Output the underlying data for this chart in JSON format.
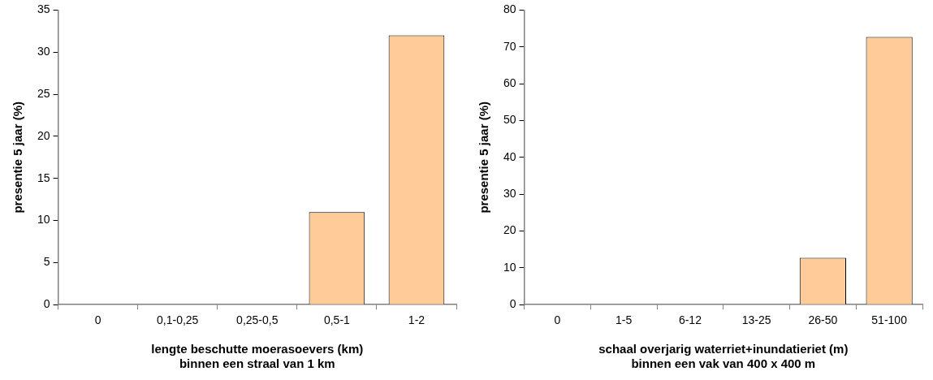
{
  "chart_data": [
    {
      "type": "bar",
      "xlabel": "lengte beschutte moerasoevers (km)\nbinnen een straal van 1 km",
      "ylabel": "presentie 5 jaar (%)",
      "categories": [
        "0",
        "0,1-0,25",
        "0,25-0,5",
        "0,5-1",
        "1-2"
      ],
      "values": [
        0,
        0,
        0,
        11,
        32
      ],
      "color": "#ffcc99",
      "ylim": [
        0,
        35
      ],
      "yticks": [
        0,
        5,
        10,
        15,
        20,
        25,
        30,
        35
      ],
      "grid": false
    },
    {
      "type": "bar",
      "xlabel": "schaal overjarig waterriet+inundatieriet (m)\nbinnen een vak van 400 x 400 m",
      "ylabel": "presentie 5 jaar (%)",
      "categories": [
        "0",
        "1-5",
        "6-12",
        "13-25",
        "26-50",
        "51-100"
      ],
      "values": [
        0,
        0,
        0,
        0,
        12.7,
        72.7
      ],
      "color": "#ffcc99",
      "ylim": [
        0,
        80
      ],
      "yticks": [
        0,
        10,
        20,
        30,
        40,
        50,
        60,
        70,
        80
      ],
      "grid": false
    }
  ]
}
